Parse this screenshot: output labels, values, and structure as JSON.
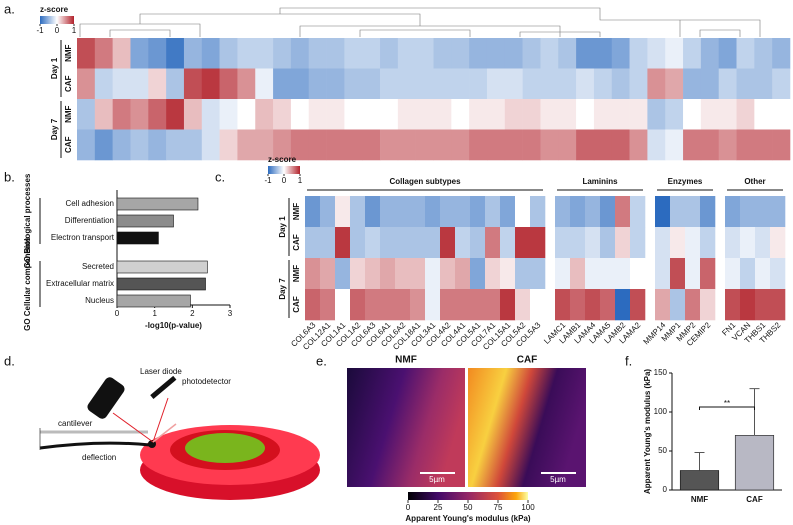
{
  "panel_labels": [
    "a.",
    "b.",
    "c.",
    "d.",
    "e.",
    "f."
  ],
  "chart_data": [
    {
      "type": "heatmap",
      "colorbar_title": "z-score",
      "clim": [
        -1,
        1
      ],
      "cticks": [
        -1,
        0,
        1
      ],
      "row_groups": [
        {
          "label": "Day 1",
          "rows": [
            "NMF",
            "CAF"
          ]
        },
        {
          "label": "Day 7",
          "rows": [
            "NMF",
            "CAF"
          ]
        }
      ],
      "values": [
        [
          0.8,
          0.6,
          0.3,
          -0.6,
          -0.7,
          -0.9,
          -0.5,
          -0.6,
          -0.4,
          -0.3,
          -0.3,
          -0.4,
          -0.5,
          -0.4,
          -0.4,
          -0.3,
          -0.3,
          -0.4,
          -0.3,
          -0.3,
          -0.4,
          -0.4,
          -0.5,
          -0.5,
          -0.5,
          -0.4,
          -0.3,
          -0.4,
          -0.7,
          -0.7,
          -0.6,
          -0.3,
          -0.2,
          -0.1,
          -0.3,
          -0.5,
          -0.6,
          -0.3,
          -0.4,
          -0.5
        ],
        [
          0.5,
          -0.3,
          -0.2,
          -0.2,
          0.2,
          -0.4,
          0.8,
          0.9,
          0.7,
          0.5,
          -0.1,
          -0.6,
          -0.6,
          -0.5,
          -0.5,
          -0.4,
          -0.4,
          -0.3,
          -0.3,
          -0.3,
          -0.3,
          -0.3,
          -0.3,
          -0.2,
          -0.2,
          -0.3,
          -0.3,
          -0.3,
          -0.2,
          -0.3,
          -0.4,
          -0.3,
          0.5,
          0.4,
          -0.5,
          -0.5,
          -0.3,
          -0.4,
          -0.4,
          -0.3
        ],
        [
          -0.4,
          0.3,
          0.6,
          0.5,
          0.7,
          0.9,
          0.3,
          -0.2,
          -0.1,
          0.0,
          0.3,
          0.2,
          0.0,
          0.1,
          0.1,
          0.0,
          0.0,
          0.0,
          0.1,
          0.1,
          0.1,
          0.0,
          0.1,
          0.1,
          0.2,
          0.2,
          0.1,
          0.1,
          0.0,
          0.1,
          0.1,
          0.1,
          -0.4,
          -0.3,
          0.0,
          0.1,
          0.1,
          0.2,
          0.0,
          0.0
        ],
        [
          -0.5,
          -0.7,
          -0.5,
          -0.4,
          -0.5,
          -0.4,
          -0.4,
          -0.2,
          0.2,
          0.4,
          0.4,
          0.5,
          0.6,
          0.6,
          0.6,
          0.6,
          0.6,
          0.5,
          0.5,
          0.5,
          0.5,
          0.5,
          0.6,
          0.6,
          0.6,
          0.6,
          0.5,
          0.5,
          0.7,
          0.7,
          0.7,
          0.5,
          -0.2,
          -0.1,
          0.6,
          0.6,
          0.5,
          0.6,
          0.6,
          0.6
        ]
      ]
    },
    {
      "type": "bar",
      "orientation": "horizontal",
      "xlabel": "-log10(p-value)",
      "xlim": [
        0,
        3
      ],
      "xticks": [
        0,
        1,
        2,
        3
      ],
      "groups": [
        {
          "label": "GO Biological processes",
          "categories": [
            "Cell adhesion",
            "Differentiation",
            "Electron transport"
          ],
          "values": [
            2.15,
            1.5,
            1.1
          ],
          "colors": [
            "#a6a6a6",
            "#8c8c8c",
            "#111111"
          ]
        },
        {
          "label": "GO Cellular components",
          "categories": [
            "Secreted",
            "Extracellular matrix",
            "Nucleus"
          ],
          "values": [
            2.4,
            2.35,
            1.95
          ],
          "colors": [
            "#d0d0d0",
            "#555555",
            "#a6a6a6"
          ]
        }
      ]
    },
    {
      "type": "heatmap",
      "colorbar_title": "z-score",
      "clim": [
        -1,
        1
      ],
      "cticks": [
        -1,
        0,
        1
      ],
      "row_groups": [
        {
          "label": "Day 1",
          "rows": [
            "NMF",
            "CAF"
          ]
        },
        {
          "label": "Day 7",
          "rows": [
            "NMF",
            "CAF"
          ]
        }
      ],
      "column_groups": [
        {
          "label": "Collagen subtypes",
          "columns": [
            "COL6A3",
            "COL12A1",
            "COL1A1",
            "COL1A2",
            "COL6A3",
            "COL6A1",
            "COL6A2",
            "COL18A1",
            "COL3A1",
            "COL4A2",
            "COL4A1",
            "COL5A1",
            "COL7A1",
            "COL15A1",
            "COL5A2",
            "COL5A3"
          ],
          "values": [
            [
              -0.7,
              -0.5,
              0.1,
              -0.4,
              -0.7,
              -0.5,
              -0.5,
              -0.5,
              -0.6,
              -0.5,
              -0.5,
              -0.6,
              -0.4,
              -0.6,
              0.0,
              -0.4
            ],
            [
              -0.4,
              -0.4,
              0.9,
              -0.4,
              -0.3,
              -0.4,
              -0.4,
              -0.4,
              -0.4,
              0.9,
              -0.3,
              -0.4,
              0.6,
              -0.3,
              0.9,
              0.9
            ],
            [
              0.5,
              0.4,
              -0.5,
              0.2,
              0.3,
              0.4,
              0.3,
              0.3,
              -0.1,
              0.3,
              0.4,
              -0.6,
              0.2,
              0.1,
              -0.4,
              -0.4
            ],
            [
              0.7,
              0.6,
              0.0,
              0.7,
              0.6,
              0.6,
              0.6,
              0.5,
              -0.1,
              0.6,
              0.6,
              0.6,
              0.6,
              0.9,
              0.2,
              0.0
            ]
          ]
        },
        {
          "label": "Laminins",
          "columns": [
            "LAMC1",
            "LAMB1",
            "LAMA4",
            "LAMA5",
            "LAMB2",
            "LAMA2"
          ],
          "values": [
            [
              -0.5,
              -0.6,
              -0.5,
              -0.7,
              0.6,
              -0.3
            ],
            [
              -0.3,
              -0.3,
              -0.2,
              -0.4,
              0.2,
              -0.3
            ],
            [
              -0.1,
              0.3,
              -0.1,
              -0.1,
              -0.1,
              0.0
            ],
            [
              0.8,
              0.7,
              0.8,
              0.7,
              -1.0,
              0.8
            ]
          ]
        },
        {
          "label": "Enzymes",
          "columns": [
            "MMP14",
            "MMP1",
            "MMP2",
            "CEMIP2"
          ],
          "values": [
            [
              -1.0,
              -0.4,
              -0.4,
              -0.7
            ],
            [
              -0.2,
              0.1,
              -0.1,
              -0.3
            ],
            [
              -0.2,
              0.8,
              -0.1,
              0.7
            ],
            [
              0.4,
              -0.4,
              0.6,
              0.2
            ]
          ]
        },
        {
          "label": "Other",
          "columns": [
            "FN1",
            "VCAN",
            "THBS1",
            "THBS2"
          ],
          "values": [
            [
              -0.6,
              -0.5,
              -0.5,
              -0.5
            ],
            [
              -0.2,
              -0.1,
              -0.2,
              0.1
            ],
            [
              -0.1,
              -0.3,
              -0.1,
              -0.2
            ],
            [
              0.8,
              0.9,
              0.8,
              0.8
            ]
          ]
        }
      ]
    },
    {
      "type": "bar",
      "orientation": "vertical",
      "ylabel": "Apparent Young's modulus (kPa)",
      "ylim": [
        0,
        150
      ],
      "yticks": [
        0,
        50,
        100,
        150
      ],
      "categories": [
        "NMF",
        "CAF"
      ],
      "values": [
        25,
        70
      ],
      "errors": [
        23,
        60
      ],
      "colors": [
        "#555555",
        "#b8b8c4"
      ],
      "annotation": "**"
    }
  ],
  "diagram": {
    "labels": [
      "Laser diode",
      "photodetector",
      "cantilever",
      "deflection"
    ]
  },
  "afm": {
    "titles": [
      "NMF",
      "CAF"
    ],
    "scale_bars": [
      "5µm",
      "5µm"
    ],
    "colorbar": {
      "clim": [
        0,
        100
      ],
      "ticks": [
        0,
        25,
        50,
        75,
        100
      ],
      "label": "Apparent Young's modulus (kPa)"
    }
  }
}
